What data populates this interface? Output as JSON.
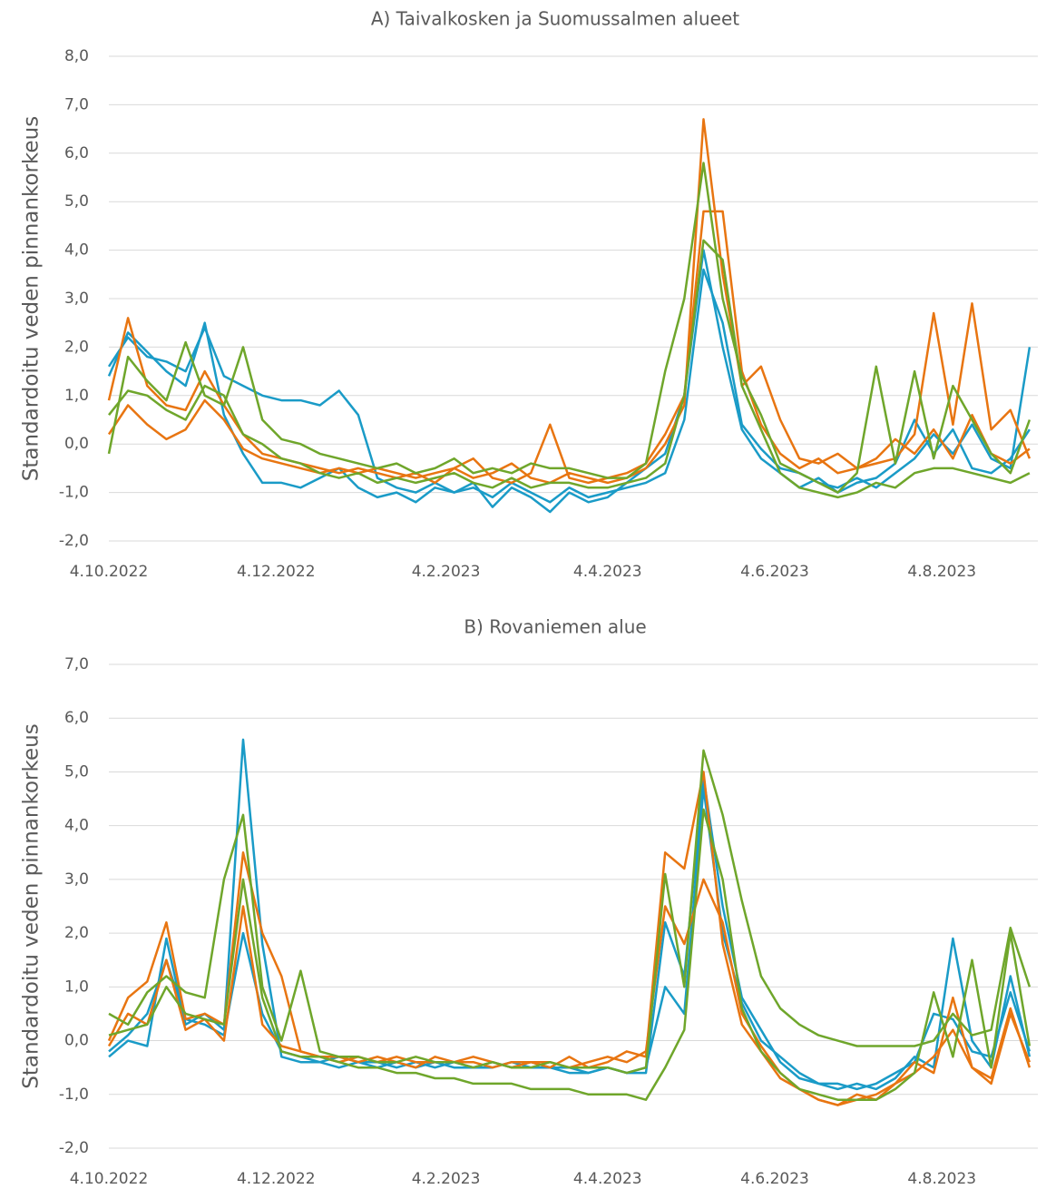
{
  "chart_data": [
    {
      "type": "line",
      "title": "A) Taivalkosken ja Suomussalmen alueet",
      "y_label": "Standardoitu veden pinnankorkeus",
      "grid": true,
      "x": [
        "2022-10-04",
        "2022-10-11",
        "2022-10-18",
        "2022-10-25",
        "2022-11-01",
        "2022-11-08",
        "2022-11-15",
        "2022-11-22",
        "2022-11-29",
        "2022-12-06",
        "2022-12-13",
        "2022-12-20",
        "2022-12-27",
        "2023-01-03",
        "2023-01-10",
        "2023-01-17",
        "2023-01-24",
        "2023-01-31",
        "2023-02-07",
        "2023-02-14",
        "2023-02-21",
        "2023-02-28",
        "2023-03-07",
        "2023-03-14",
        "2023-03-21",
        "2023-03-28",
        "2023-04-04",
        "2023-04-11",
        "2023-04-18",
        "2023-04-25",
        "2023-05-02",
        "2023-05-09",
        "2023-05-16",
        "2023-05-23",
        "2023-05-30",
        "2023-06-06",
        "2023-06-13",
        "2023-06-20",
        "2023-06-27",
        "2023-07-04",
        "2023-07-11",
        "2023-07-18",
        "2023-07-25",
        "2023-08-01",
        "2023-08-08",
        "2023-08-15",
        "2023-08-22",
        "2023-08-29",
        "2023-09-05"
      ],
      "xlim": [
        "2022-10-04",
        "2023-09-08"
      ],
      "xticks": [
        {
          "value": "2022-10-04",
          "label": "4.10.2022"
        },
        {
          "value": "2022-12-04",
          "label": "4.12.2022"
        },
        {
          "value": "2023-02-04",
          "label": "4.2.2023"
        },
        {
          "value": "2023-04-04",
          "label": "4.4.2023"
        },
        {
          "value": "2023-06-04",
          "label": "4.6.2023"
        },
        {
          "value": "2023-08-04",
          "label": "4.8.2023"
        }
      ],
      "ylim": [
        -2,
        8
      ],
      "yticks": [
        {
          "value": -2,
          "label": "-2,0"
        },
        {
          "value": -1,
          "label": "-1,0"
        },
        {
          "value": 0,
          "label": "0,0"
        },
        {
          "value": 1,
          "label": "1,0"
        },
        {
          "value": 2,
          "label": "2,0"
        },
        {
          "value": 3,
          "label": "3,0"
        },
        {
          "value": 4,
          "label": "4,0"
        },
        {
          "value": 5,
          "label": "5,0"
        },
        {
          "value": 6,
          "label": "6,0"
        },
        {
          "value": 7,
          "label": "7,0"
        },
        {
          "value": 8,
          "label": "8,0"
        }
      ],
      "series": [
        {
          "color": "#1a9bc7",
          "values": [
            1.6,
            2.2,
            1.8,
            1.7,
            1.5,
            2.4,
            1.4,
            1.2,
            1.0,
            0.9,
            0.9,
            0.8,
            1.1,
            0.6,
            -0.7,
            -0.9,
            -1.0,
            -0.8,
            -1.0,
            -0.9,
            -1.1,
            -0.8,
            -1.0,
            -1.2,
            -0.9,
            -1.1,
            -1.0,
            -0.9,
            -0.8,
            -0.6,
            0.5,
            3.6,
            2.5,
            0.4,
            -0.1,
            -0.5,
            -0.6,
            -0.8,
            -0.9,
            -0.7,
            -0.9,
            -0.6,
            -0.3,
            0.2,
            -0.2,
            0.4,
            -0.3,
            -0.5,
            2.0
          ]
        },
        {
          "color": "#1a9bc7",
          "values": [
            1.4,
            2.3,
            1.9,
            1.5,
            1.2,
            2.5,
            0.6,
            -0.2,
            -0.8,
            -0.8,
            -0.9,
            -0.7,
            -0.5,
            -0.9,
            -1.1,
            -1.0,
            -1.2,
            -0.9,
            -1.0,
            -0.8,
            -1.3,
            -0.9,
            -1.1,
            -1.4,
            -1.0,
            -1.2,
            -1.1,
            -0.8,
            -0.5,
            -0.2,
            1.0,
            4.0,
            2.0,
            0.3,
            -0.3,
            -0.6,
            -0.9,
            -0.7,
            -1.0,
            -0.8,
            -0.7,
            -0.4,
            0.5,
            -0.2,
            0.3,
            -0.5,
            -0.6,
            -0.3,
            0.3
          ]
        },
        {
          "color": "#e87511",
          "values": [
            0.9,
            2.6,
            1.2,
            0.8,
            0.7,
            1.5,
            0.8,
            0.2,
            -0.2,
            -0.3,
            -0.4,
            -0.5,
            -0.6,
            -0.5,
            -0.6,
            -0.7,
            -0.6,
            -0.8,
            -0.5,
            -0.7,
            -0.6,
            -0.4,
            -0.7,
            -0.8,
            -0.6,
            -0.7,
            -0.8,
            -0.7,
            -0.5,
            0.0,
            0.8,
            6.7,
            3.5,
            1.2,
            1.6,
            0.5,
            -0.3,
            -0.4,
            -0.2,
            -0.5,
            -0.4,
            -0.3,
            0.2,
            2.7,
            0.4,
            2.9,
            0.3,
            0.7,
            -0.3
          ]
        },
        {
          "color": "#e87511",
          "values": [
            0.2,
            0.8,
            0.4,
            0.1,
            0.3,
            0.9,
            0.5,
            -0.1,
            -0.3,
            -0.4,
            -0.5,
            -0.6,
            -0.5,
            -0.6,
            -0.5,
            -0.6,
            -0.7,
            -0.6,
            -0.5,
            -0.3,
            -0.7,
            -0.8,
            -0.6,
            0.4,
            -0.7,
            -0.8,
            -0.7,
            -0.6,
            -0.4,
            0.2,
            1.0,
            4.8,
            4.8,
            1.5,
            0.4,
            -0.2,
            -0.5,
            -0.3,
            -0.6,
            -0.5,
            -0.3,
            0.1,
            -0.2,
            0.3,
            -0.3,
            0.6,
            -0.2,
            -0.4,
            -0.1
          ]
        },
        {
          "color": "#6fa62b",
          "values": [
            -0.2,
            1.8,
            1.3,
            0.9,
            2.1,
            1.0,
            0.8,
            2.0,
            0.5,
            0.1,
            0.0,
            -0.2,
            -0.3,
            -0.4,
            -0.5,
            -0.4,
            -0.6,
            -0.5,
            -0.3,
            -0.6,
            -0.5,
            -0.6,
            -0.4,
            -0.5,
            -0.5,
            -0.6,
            -0.7,
            -0.7,
            -0.4,
            1.5,
            3.0,
            5.8,
            3.0,
            1.4,
            0.6,
            -0.4,
            -0.6,
            -0.8,
            -1.0,
            -0.6,
            1.6,
            -0.4,
            1.5,
            -0.3,
            1.2,
            0.5,
            -0.2,
            -0.6,
            0.5
          ]
        },
        {
          "color": "#6fa62b",
          "values": [
            0.6,
            1.1,
            1.0,
            0.7,
            0.5,
            1.2,
            1.0,
            0.2,
            0.0,
            -0.3,
            -0.4,
            -0.6,
            -0.7,
            -0.6,
            -0.8,
            -0.7,
            -0.8,
            -0.7,
            -0.6,
            -0.8,
            -0.9,
            -0.7,
            -0.9,
            -0.8,
            -0.8,
            -0.9,
            -0.9,
            -0.8,
            -0.7,
            -0.4,
            1.0,
            4.2,
            3.8,
            1.2,
            0.3,
            -0.6,
            -0.9,
            -1.0,
            -1.1,
            -1.0,
            -0.8,
            -0.9,
            -0.6,
            -0.5,
            -0.5,
            -0.6,
            -0.7,
            -0.8,
            -0.6
          ]
        }
      ]
    },
    {
      "type": "line",
      "title": "B) Rovaniemen alue",
      "y_label": "Standardoitu veden pinnankorkeus",
      "grid": true,
      "x": [
        "2022-10-04",
        "2022-10-11",
        "2022-10-18",
        "2022-10-25",
        "2022-11-01",
        "2022-11-08",
        "2022-11-15",
        "2022-11-22",
        "2022-11-29",
        "2022-12-06",
        "2022-12-13",
        "2022-12-20",
        "2022-12-27",
        "2023-01-03",
        "2023-01-10",
        "2023-01-17",
        "2023-01-24",
        "2023-01-31",
        "2023-02-07",
        "2023-02-14",
        "2023-02-21",
        "2023-02-28",
        "2023-03-07",
        "2023-03-14",
        "2023-03-21",
        "2023-03-28",
        "2023-04-04",
        "2023-04-11",
        "2023-04-18",
        "2023-04-25",
        "2023-05-02",
        "2023-05-09",
        "2023-05-16",
        "2023-05-23",
        "2023-05-30",
        "2023-06-06",
        "2023-06-13",
        "2023-06-20",
        "2023-06-27",
        "2023-07-04",
        "2023-07-11",
        "2023-07-18",
        "2023-07-25",
        "2023-08-01",
        "2023-08-08",
        "2023-08-15",
        "2023-08-22",
        "2023-08-29",
        "2023-09-05"
      ],
      "xlim": [
        "2022-10-04",
        "2023-09-08"
      ],
      "xticks": [
        {
          "value": "2022-10-04",
          "label": "4.10.2022"
        },
        {
          "value": "2022-12-04",
          "label": "4.12.2022"
        },
        {
          "value": "2023-02-04",
          "label": "4.2.2023"
        },
        {
          "value": "2023-04-04",
          "label": "4.4.2023"
        },
        {
          "value": "2023-06-04",
          "label": "4.6.2023"
        },
        {
          "value": "2023-08-04",
          "label": "4.8.2023"
        }
      ],
      "ylim": [
        -2,
        7
      ],
      "yticks": [
        {
          "value": -2,
          "label": "-2,0"
        },
        {
          "value": -1,
          "label": "-1,0"
        },
        {
          "value": 0,
          "label": "0,0"
        },
        {
          "value": 1,
          "label": "1,0"
        },
        {
          "value": 2,
          "label": "2,0"
        },
        {
          "value": 3,
          "label": "3,0"
        },
        {
          "value": 4,
          "label": "4,0"
        },
        {
          "value": 5,
          "label": "5,0"
        },
        {
          "value": 6,
          "label": "6,0"
        },
        {
          "value": 7,
          "label": "7,0"
        }
      ],
      "series": [
        {
          "color": "#1a9bc7",
          "values": [
            -0.3,
            0.0,
            -0.1,
            1.9,
            0.3,
            0.5,
            0.2,
            5.6,
            1.8,
            -0.3,
            -0.4,
            -0.4,
            -0.3,
            -0.4,
            -0.5,
            -0.4,
            -0.5,
            -0.4,
            -0.5,
            -0.5,
            -0.4,
            -0.5,
            -0.4,
            -0.5,
            -0.5,
            -0.6,
            -0.5,
            -0.6,
            -0.6,
            2.2,
            1.2,
            4.9,
            2.5,
            0.8,
            0.2,
            -0.4,
            -0.7,
            -0.8,
            -0.9,
            -0.8,
            -0.9,
            -0.7,
            -0.3,
            -0.5,
            1.9,
            0.0,
            -0.5,
            1.2,
            -0.3
          ]
        },
        {
          "color": "#1a9bc7",
          "values": [
            -0.2,
            0.1,
            0.5,
            1.5,
            0.4,
            0.3,
            0.1,
            2.0,
            0.5,
            -0.2,
            -0.3,
            -0.4,
            -0.5,
            -0.4,
            -0.4,
            -0.5,
            -0.4,
            -0.5,
            -0.4,
            -0.5,
            -0.5,
            -0.4,
            -0.5,
            -0.5,
            -0.6,
            -0.6,
            -0.5,
            -0.6,
            -0.5,
            1.0,
            0.5,
            4.7,
            2.0,
            0.7,
            0.0,
            -0.3,
            -0.6,
            -0.8,
            -0.8,
            -0.9,
            -0.8,
            -0.6,
            -0.4,
            0.5,
            0.4,
            -0.2,
            -0.3,
            0.9,
            -0.2
          ]
        },
        {
          "color": "#e87511",
          "values": [
            0.0,
            0.8,
            1.1,
            2.2,
            0.4,
            0.5,
            0.3,
            3.5,
            2.0,
            1.2,
            -0.2,
            -0.3,
            -0.3,
            -0.4,
            -0.3,
            -0.4,
            -0.5,
            -0.3,
            -0.4,
            -0.4,
            -0.5,
            -0.4,
            -0.4,
            -0.5,
            -0.3,
            -0.5,
            -0.4,
            -0.2,
            -0.3,
            3.5,
            3.2,
            5.0,
            1.8,
            0.3,
            -0.2,
            -0.7,
            -0.9,
            -1.1,
            -1.2,
            -1.1,
            -1.0,
            -0.8,
            -0.4,
            -0.6,
            0.8,
            -0.5,
            -0.7,
            0.6,
            -0.5
          ]
        },
        {
          "color": "#e87511",
          "values": [
            -0.1,
            0.5,
            0.3,
            1.5,
            0.2,
            0.4,
            0.0,
            2.5,
            0.3,
            -0.1,
            -0.2,
            -0.3,
            -0.4,
            -0.3,
            -0.4,
            -0.3,
            -0.4,
            -0.4,
            -0.4,
            -0.3,
            -0.4,
            -0.5,
            -0.4,
            -0.4,
            -0.5,
            -0.4,
            -0.3,
            -0.4,
            -0.2,
            2.5,
            1.8,
            3.0,
            2.2,
            0.5,
            -0.1,
            -0.6,
            -0.9,
            -1.1,
            -1.2,
            -1.0,
            -1.1,
            -0.8,
            -0.6,
            -0.3,
            0.2,
            -0.5,
            -0.8,
            0.5,
            -0.4
          ]
        },
        {
          "color": "#6fa62b",
          "values": [
            0.5,
            0.3,
            0.9,
            1.2,
            0.9,
            0.8,
            3.0,
            4.2,
            1.0,
            0.0,
            1.3,
            -0.2,
            -0.3,
            -0.3,
            -0.4,
            -0.4,
            -0.3,
            -0.4,
            -0.4,
            -0.5,
            -0.4,
            -0.5,
            -0.5,
            -0.4,
            -0.5,
            -0.5,
            -0.5,
            -0.6,
            -0.5,
            3.1,
            1.0,
            5.4,
            4.2,
            2.6,
            1.2,
            0.6,
            0.3,
            0.1,
            0.0,
            -0.1,
            -0.1,
            -0.1,
            -0.1,
            0.0,
            0.5,
            0.1,
            0.2,
            2.1,
            1.0
          ]
        },
        {
          "color": "#6fa62b",
          "values": [
            0.1,
            0.2,
            0.3,
            1.0,
            0.5,
            0.4,
            0.3,
            3.0,
            0.8,
            -0.2,
            -0.3,
            -0.3,
            -0.4,
            -0.5,
            -0.5,
            -0.6,
            -0.6,
            -0.7,
            -0.7,
            -0.8,
            -0.8,
            -0.8,
            -0.9,
            -0.9,
            -0.9,
            -1.0,
            -1.0,
            -1.0,
            -1.1,
            -0.5,
            0.2,
            4.3,
            3.0,
            0.6,
            -0.2,
            -0.6,
            -0.9,
            -1.0,
            -1.1,
            -1.1,
            -1.1,
            -0.9,
            -0.6,
            0.9,
            -0.3,
            1.5,
            -0.5,
            2.0,
            -0.1
          ]
        }
      ]
    }
  ]
}
